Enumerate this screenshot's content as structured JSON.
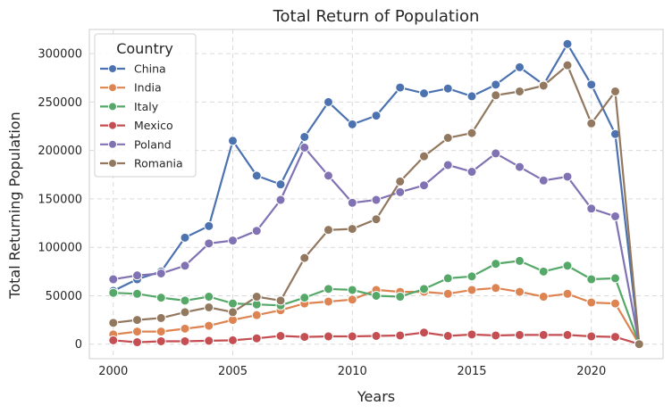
{
  "chart_data": {
    "type": "line",
    "title": "Total Return of Population",
    "xlabel": "Years",
    "ylabel": "Total Returning Population",
    "xlim": [
      1999,
      2023
    ],
    "ylim": [
      -15000,
      325000
    ],
    "xticks": [
      2000,
      2005,
      2010,
      2015,
      2020
    ],
    "yticks": [
      0,
      50000,
      100000,
      150000,
      200000,
      250000,
      300000
    ],
    "grid": true,
    "legend": {
      "title": "Country",
      "placement": "top-left"
    },
    "x": [
      2000,
      2001,
      2002,
      2003,
      2004,
      2005,
      2006,
      2007,
      2008,
      2009,
      2010,
      2011,
      2012,
      2013,
      2014,
      2015,
      2016,
      2017,
      2018,
      2019,
      2020,
      2021,
      2022
    ],
    "series": [
      {
        "name": "China",
        "color": "#4c72b0",
        "values": [
          55000,
          67000,
          75000,
          110000,
          122000,
          210000,
          174000,
          165000,
          214000,
          250000,
          227000,
          236000,
          265000,
          259000,
          264000,
          256000,
          268000,
          286000,
          268000,
          310000,
          268000,
          217000,
          0
        ]
      },
      {
        "name": "India",
        "color": "#dd8452",
        "values": [
          10000,
          13000,
          13000,
          16000,
          19000,
          25000,
          30000,
          35000,
          42000,
          44000,
          46000,
          56000,
          54000,
          54000,
          52000,
          56000,
          58000,
          54000,
          49000,
          52000,
          43000,
          42000,
          0
        ]
      },
      {
        "name": "Italy",
        "color": "#55a868",
        "values": [
          53000,
          52000,
          48000,
          45000,
          49000,
          42000,
          41000,
          40000,
          48000,
          57000,
          56000,
          50000,
          49000,
          57000,
          68000,
          70000,
          83000,
          86000,
          75000,
          81000,
          67000,
          68000,
          0
        ]
      },
      {
        "name": "Mexico",
        "color": "#c44e52",
        "values": [
          4000,
          2000,
          3000,
          3000,
          3500,
          4000,
          6000,
          8500,
          7500,
          8000,
          8000,
          8500,
          9000,
          12000,
          8500,
          10000,
          9000,
          9500,
          9500,
          9500,
          8000,
          7500,
          0
        ]
      },
      {
        "name": "Poland",
        "color": "#8172b3",
        "values": [
          67000,
          71000,
          73000,
          81000,
          104000,
          107000,
          117000,
          149000,
          203000,
          174000,
          146000,
          149000,
          157000,
          164000,
          185000,
          178000,
          197000,
          183000,
          169000,
          173000,
          140000,
          132000,
          0
        ]
      },
      {
        "name": "Romania",
        "color": "#937860",
        "values": [
          22000,
          25000,
          27000,
          33000,
          38000,
          33000,
          49000,
          45000,
          89000,
          118000,
          119000,
          129000,
          168000,
          194000,
          213000,
          218000,
          257000,
          261000,
          267000,
          288000,
          228000,
          261000,
          0
        ]
      }
    ]
  }
}
